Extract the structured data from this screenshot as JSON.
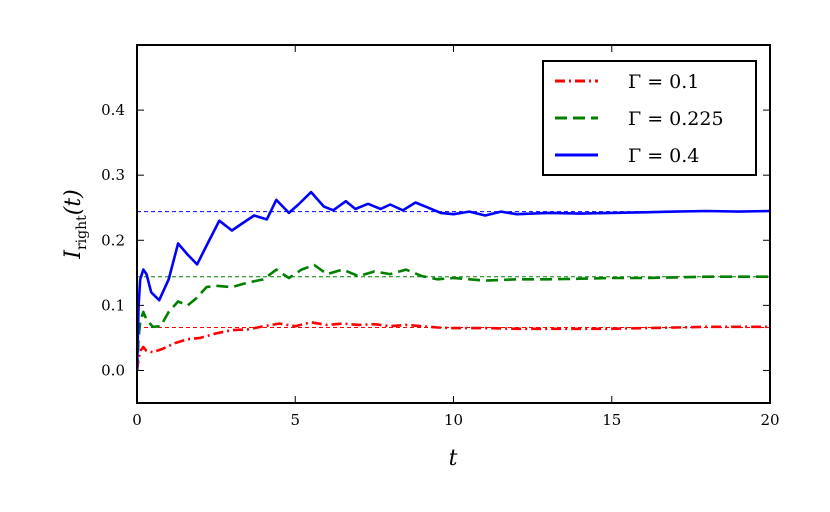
{
  "chart_data": {
    "type": "line",
    "xlabel": "t",
    "ylabel_main": "I",
    "ylabel_sub": "right",
    "ylabel_tail": "(t)",
    "xlim": [
      0,
      20
    ],
    "ylim": [
      -0.05,
      0.5
    ],
    "xticks": [
      0,
      5,
      10,
      15,
      20
    ],
    "xtick_labels": [
      "0",
      "5",
      "10",
      "15",
      "20"
    ],
    "yticks": [
      0.0,
      0.1,
      0.2,
      0.3,
      0.4
    ],
    "ytick_labels": [
      "0.0",
      "0.1",
      "0.2",
      "0.3",
      "0.4"
    ],
    "grid": false,
    "legend_position": "top-right",
    "series": [
      {
        "name": "Γ = 0.1",
        "color": "#ff0000",
        "style": "dashdot",
        "steady_state": 0.066,
        "x": [
          0,
          0.05,
          0.1,
          0.2,
          0.3,
          0.5,
          0.8,
          1.2,
          1.6,
          2.0,
          2.5,
          3.0,
          3.5,
          4.0,
          4.5,
          5.0,
          5.5,
          6.0,
          6.5,
          7.0,
          7.5,
          8.0,
          8.5,
          9.0,
          9.5,
          10.0,
          11.0,
          12.0,
          13.0,
          14.0,
          15.0,
          16.0,
          17.0,
          18.0,
          19.0,
          20.0
        ],
        "y": [
          0.0,
          0.018,
          0.03,
          0.036,
          0.03,
          0.028,
          0.033,
          0.042,
          0.048,
          0.05,
          0.057,
          0.062,
          0.063,
          0.068,
          0.072,
          0.068,
          0.074,
          0.07,
          0.072,
          0.07,
          0.071,
          0.068,
          0.07,
          0.068,
          0.066,
          0.065,
          0.065,
          0.064,
          0.064,
          0.064,
          0.064,
          0.065,
          0.066,
          0.067,
          0.067,
          0.067
        ]
      },
      {
        "name": "Γ = 0.225",
        "color": "#008000",
        "style": "dashed",
        "steady_state": 0.144,
        "x": [
          0,
          0.05,
          0.1,
          0.2,
          0.3,
          0.5,
          0.75,
          1.0,
          1.3,
          1.6,
          1.85,
          2.2,
          2.5,
          3.0,
          3.5,
          4.0,
          4.4,
          4.8,
          5.2,
          5.6,
          6.0,
          6.5,
          7.0,
          7.5,
          8.0,
          8.5,
          9.0,
          9.5,
          10.0,
          10.5,
          11.0,
          12.0,
          13.0,
          14.0,
          15.0,
          16.0,
          17.0,
          18.0,
          19.0,
          20.0
        ],
        "y": [
          0.0,
          0.05,
          0.075,
          0.09,
          0.078,
          0.067,
          0.068,
          0.09,
          0.106,
          0.1,
          0.11,
          0.128,
          0.13,
          0.128,
          0.135,
          0.14,
          0.155,
          0.142,
          0.155,
          0.162,
          0.148,
          0.155,
          0.145,
          0.152,
          0.148,
          0.155,
          0.145,
          0.14,
          0.142,
          0.14,
          0.138,
          0.14,
          0.14,
          0.141,
          0.142,
          0.142,
          0.143,
          0.144,
          0.144,
          0.144
        ]
      },
      {
        "name": "Γ = 0.4",
        "color": "#0000ff",
        "style": "solid",
        "steady_state": 0.244,
        "x": [
          0,
          0.05,
          0.1,
          0.2,
          0.3,
          0.45,
          0.7,
          1.0,
          1.3,
          1.6,
          1.9,
          2.2,
          2.6,
          3.0,
          3.3,
          3.7,
          4.1,
          4.4,
          4.8,
          5.1,
          5.5,
          5.9,
          6.2,
          6.6,
          6.9,
          7.3,
          7.7,
          8.0,
          8.4,
          8.8,
          9.2,
          9.6,
          10.0,
          10.5,
          11.0,
          11.5,
          12.0,
          13.0,
          14.0,
          15.0,
          16.0,
          17.0,
          18.0,
          19.0,
          20.0
        ],
        "y": [
          0.0,
          0.1,
          0.14,
          0.155,
          0.148,
          0.12,
          0.108,
          0.14,
          0.195,
          0.178,
          0.163,
          0.192,
          0.23,
          0.215,
          0.225,
          0.238,
          0.232,
          0.262,
          0.242,
          0.255,
          0.274,
          0.252,
          0.246,
          0.26,
          0.248,
          0.256,
          0.248,
          0.255,
          0.246,
          0.258,
          0.25,
          0.242,
          0.24,
          0.244,
          0.238,
          0.244,
          0.24,
          0.242,
          0.241,
          0.242,
          0.243,
          0.244,
          0.245,
          0.244,
          0.245
        ]
      }
    ]
  }
}
